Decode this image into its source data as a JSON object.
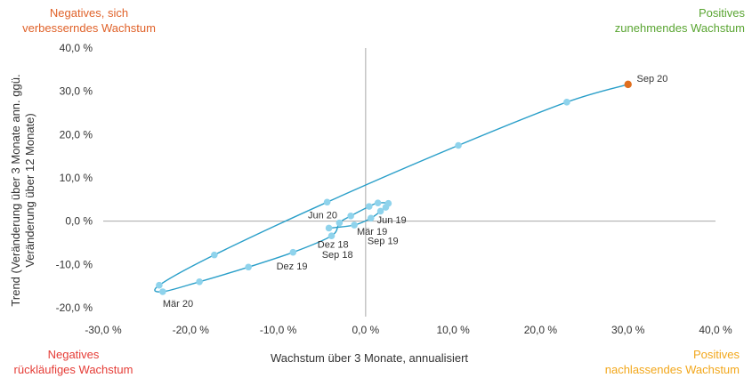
{
  "chart_data": {
    "type": "scatter",
    "title": "",
    "xlabel": "Wachstum über 3 Monate, annualisiert",
    "ylabel_line1": "Trend (Veränderung über 3 Monate ann. ggü.",
    "ylabel_line2": "Veränderung über 12 Monate)",
    "xlim": [
      -30,
      40
    ],
    "ylim": [
      -20,
      40
    ],
    "x_ticks": [
      -30,
      -20,
      -10,
      0,
      10,
      20,
      30,
      40
    ],
    "y_ticks": [
      -20,
      -10,
      0,
      10,
      20,
      30,
      40
    ],
    "x_tick_labels": [
      "-30,0 %",
      "-20,0 %",
      "-10,0 %",
      "0,0 %",
      "10,0 %",
      "20,0 %",
      "30,0 %",
      "40,0 %"
    ],
    "y_tick_labels": [
      "-20,0 %",
      "-10,0 %",
      "0,0 %",
      "10,0 %",
      "20,0 %",
      "30,0 %",
      "40,0 %"
    ],
    "grid": false,
    "line_color": "#2a9fc9",
    "point_color": "#8fd3ec",
    "highlight_color": "#e06f1f",
    "points": [
      {
        "x": -4.2,
        "y": -1.6
      },
      {
        "x": -1.3,
        "y": -0.9
      },
      {
        "x": 0.6,
        "y": 0.7
      },
      {
        "x": 1.7,
        "y": 2.3
      },
      {
        "x": 2.3,
        "y": 3.2
      },
      {
        "x": 2.6,
        "y": 4.1
      },
      {
        "x": 1.4,
        "y": 4.2
      },
      {
        "x": 0.4,
        "y": 3.4
      },
      {
        "x": -1.7,
        "y": 1.2
      },
      {
        "x": -3.0,
        "y": -0.4
      },
      {
        "x": -3.9,
        "y": -3.4
      },
      {
        "x": -8.3,
        "y": -7.2
      },
      {
        "x": -13.4,
        "y": -10.6
      },
      {
        "x": -19.0,
        "y": -14.0
      },
      {
        "x": -23.2,
        "y": -16.3
      },
      {
        "x": -23.6,
        "y": -14.8
      },
      {
        "x": -17.3,
        "y": -7.8
      },
      {
        "x": -4.4,
        "y": 4.4
      },
      {
        "x": 10.6,
        "y": 17.5
      },
      {
        "x": 23.0,
        "y": 27.5
      },
      {
        "x": 30.0,
        "y": 31.6
      }
    ],
    "point_labels": [
      {
        "text": "Sep 18",
        "x": -5.0,
        "y": -8.5
      },
      {
        "text": "Dez 18",
        "x": -5.5,
        "y": -6.1
      },
      {
        "text": "Mär 19",
        "x": -1.0,
        "y": -3.1
      },
      {
        "text": "Jun 19",
        "x": 1.3,
        "y": -0.5
      },
      {
        "text": "Sep 19",
        "x": 0.2,
        "y": -5.3
      },
      {
        "text": "Dez 19",
        "x": -10.2,
        "y": -11.2
      },
      {
        "text": "Mär 20",
        "x": -23.2,
        "y": -19.8
      },
      {
        "text": "Jun 20",
        "x": -6.6,
        "y": 0.6
      },
      {
        "text": "Sep 20",
        "x": 31.0,
        "y": 32.2
      }
    ]
  },
  "quadrants": {
    "top_left": [
      "Negatives, sich",
      "verbesserndes Wachstum"
    ],
    "top_left_color": "#e0622a",
    "top_right": [
      "Positives",
      "zunehmendes Wachstum"
    ],
    "top_right_color": "#5aa532",
    "bottom_left": [
      "Negatives",
      "rückläufiges Wachstum"
    ],
    "bottom_left_color": "#e53c36",
    "bottom_right": [
      "Positives",
      "nachlassendes Wachstum"
    ],
    "bottom_right_color": "#f2a71b"
  }
}
